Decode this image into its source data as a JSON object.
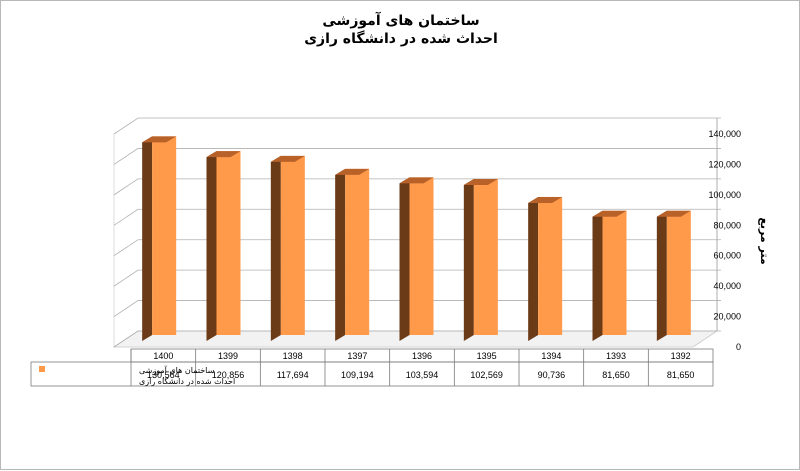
{
  "chart_data": {
    "type": "bar",
    "title_lines": [
      "ساختمان های آموزشی",
      "احداث شده در دانشگاه رازی"
    ],
    "xlabel": "",
    "ylabel": "متر مربع",
    "categories": [
      "1400",
      "1399",
      "1398",
      "1397",
      "1396",
      "1395",
      "1394",
      "1393",
      "1392"
    ],
    "series": [
      {
        "name_lines": [
          "ساختمان های آموزشی",
          "احداث شده در دانشگاه رازی"
        ],
        "values": [
          130564,
          120856,
          117694,
          109194,
          103594,
          102569,
          90736,
          81650,
          81650
        ],
        "labels": [
          "130,564",
          "120,856",
          "117,694",
          "109,194",
          "103,594",
          "102,569",
          "90,736",
          "81,650",
          "81,650"
        ],
        "color": "#ff9a4a",
        "side_color": "#6b3a16",
        "top_color": "#b8622a"
      }
    ],
    "ylim": [
      0,
      140000
    ],
    "yticks": [
      0,
      20000,
      40000,
      60000,
      80000,
      100000,
      120000,
      140000
    ],
    "ytick_labels": [
      "0",
      "20,000",
      "40,000",
      "60,000",
      "80,000",
      "100,000",
      "120,000",
      "140,000"
    ],
    "grid": true,
    "axis_position": "right",
    "data_table": true,
    "style": "3d-column"
  }
}
